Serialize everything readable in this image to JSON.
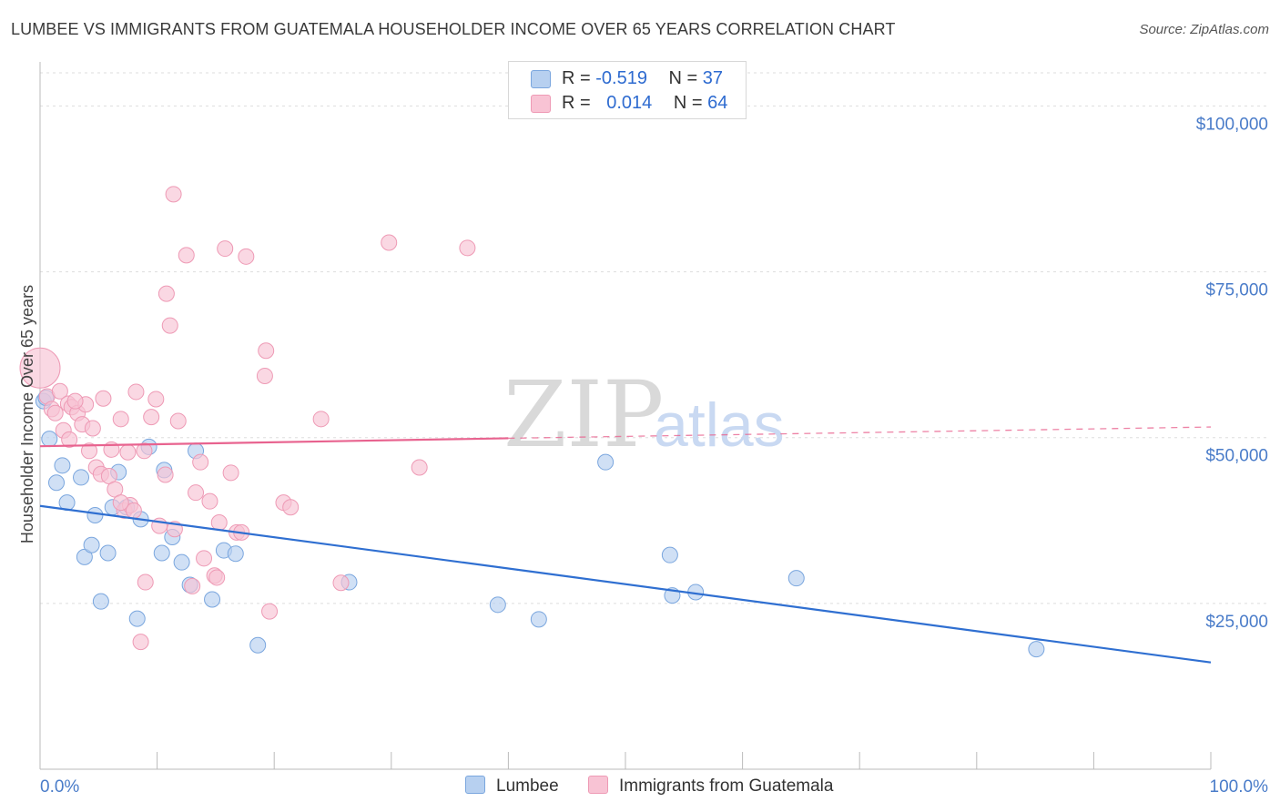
{
  "header": {
    "title": "LUMBEE VS IMMIGRANTS FROM GUATEMALA HOUSEHOLDER INCOME OVER 65 YEARS CORRELATION CHART",
    "source": "Source: ZipAtlas.com"
  },
  "legend": {
    "lumbee": {
      "r_label": "R = ",
      "r_value": "-0.519",
      "n_label": "N = ",
      "n_value": "37"
    },
    "guatemala": {
      "r_label": "R = ",
      "r_value": "0.014",
      "n_label": "N = ",
      "n_value": "64"
    }
  },
  "bottom_legend": {
    "lumbee": "Lumbee",
    "guatemala": "Immigrants from Guatemala"
  },
  "watermark": {
    "zip": "ZIP",
    "atlas": "atlas"
  },
  "colors": {
    "lumbee_fill": "#b7d0f0",
    "lumbee_stroke": "#7aa6de",
    "lumbee_line": "#2f6fd1",
    "guatemala_fill": "#f8c3d4",
    "guatemala_stroke": "#ee9ab5",
    "guatemala_line": "#e8638f",
    "axis_text": "#4a7cc9",
    "grid": "#dddddd"
  },
  "chart_data": {
    "type": "scatter",
    "title": "LUMBEE VS IMMIGRANTS FROM GUATEMALA HOUSEHOLDER INCOME OVER 65 YEARS CORRELATION CHART",
    "xlabel": "",
    "ylabel": "Householder Income Over 65 years",
    "xlim": [
      0,
      100
    ],
    "ylim": [
      0,
      105000
    ],
    "x_tick_labels": [
      "0.0%",
      "100.0%"
    ],
    "y_ticks": [
      25000,
      50000,
      75000,
      100000
    ],
    "y_tick_labels": [
      "$25,000",
      "$50,000",
      "$75,000",
      "$100,000"
    ],
    "series": [
      {
        "name": "Lumbee",
        "points": [
          [
            0.3,
            55500
          ],
          [
            0.8,
            49800
          ],
          [
            1.4,
            43200
          ],
          [
            1.9,
            45800
          ],
          [
            2.3,
            40200
          ],
          [
            3.5,
            44000
          ],
          [
            3.8,
            32000
          ],
          [
            4.4,
            33800
          ],
          [
            4.7,
            38300
          ],
          [
            5.2,
            25300
          ],
          [
            5.8,
            32600
          ],
          [
            6.2,
            39500
          ],
          [
            6.7,
            44800
          ],
          [
            7.4,
            39500
          ],
          [
            8.3,
            22700
          ],
          [
            8.6,
            37700
          ],
          [
            9.3,
            48600
          ],
          [
            10.4,
            32600
          ],
          [
            10.6,
            45100
          ],
          [
            11.3,
            35000
          ],
          [
            12.1,
            31200
          ],
          [
            12.8,
            27800
          ],
          [
            13.3,
            48000
          ],
          [
            14.7,
            25600
          ],
          [
            15.7,
            33000
          ],
          [
            16.7,
            32500
          ],
          [
            18.6,
            18700
          ],
          [
            26.4,
            28200
          ],
          [
            39.1,
            24800
          ],
          [
            42.6,
            22600
          ],
          [
            48.3,
            46300
          ],
          [
            53.8,
            32300
          ],
          [
            54.0,
            26200
          ],
          [
            56.0,
            26700
          ],
          [
            64.6,
            28800
          ],
          [
            85.1,
            18100
          ],
          [
            0.5,
            56000
          ]
        ]
      },
      {
        "name": "Immigrants from Guatemala",
        "points": [
          [
            0.0,
            60500
          ],
          [
            0.6,
            56200
          ],
          [
            1.0,
            54300
          ],
          [
            1.3,
            53700
          ],
          [
            1.7,
            57000
          ],
          [
            2.0,
            51100
          ],
          [
            2.4,
            55100
          ],
          [
            2.7,
            54600
          ],
          [
            3.2,
            53700
          ],
          [
            3.6,
            52000
          ],
          [
            3.9,
            55000
          ],
          [
            4.2,
            48000
          ],
          [
            4.5,
            51400
          ],
          [
            4.8,
            45500
          ],
          [
            5.2,
            44500
          ],
          [
            5.4,
            55900
          ],
          [
            5.9,
            44200
          ],
          [
            6.1,
            48200
          ],
          [
            6.4,
            42200
          ],
          [
            6.9,
            52800
          ],
          [
            7.2,
            39000
          ],
          [
            7.7,
            39800
          ],
          [
            7.5,
            47800
          ],
          [
            8.0,
            39000
          ],
          [
            8.2,
            56900
          ],
          [
            8.6,
            19200
          ],
          [
            9.0,
            28200
          ],
          [
            9.5,
            53100
          ],
          [
            9.9,
            55800
          ],
          [
            10.2,
            36700
          ],
          [
            10.7,
            44400
          ],
          [
            11.1,
            66900
          ],
          [
            11.5,
            36200
          ],
          [
            11.8,
            52500
          ],
          [
            12.5,
            77500
          ],
          [
            13.0,
            27600
          ],
          [
            13.3,
            41700
          ],
          [
            13.7,
            46300
          ],
          [
            14.0,
            31800
          ],
          [
            14.5,
            40400
          ],
          [
            14.9,
            29200
          ],
          [
            15.3,
            37200
          ],
          [
            15.8,
            78500
          ],
          [
            16.3,
            44700
          ],
          [
            16.8,
            35700
          ],
          [
            17.2,
            35700
          ],
          [
            17.6,
            77300
          ],
          [
            19.2,
            59300
          ],
          [
            19.3,
            63100
          ],
          [
            19.6,
            23800
          ],
          [
            20.8,
            40200
          ],
          [
            21.4,
            39500
          ],
          [
            24.0,
            52800
          ],
          [
            25.7,
            28100
          ],
          [
            29.8,
            79400
          ],
          [
            32.4,
            45500
          ],
          [
            36.5,
            78600
          ],
          [
            11.4,
            86700
          ],
          [
            10.8,
            71700
          ],
          [
            8.9,
            48000
          ],
          [
            6.9,
            40200
          ],
          [
            2.5,
            49700
          ],
          [
            3.0,
            55500
          ],
          [
            15.1,
            28900
          ]
        ]
      }
    ],
    "trend_lines": [
      {
        "series": "Lumbee",
        "x": [
          0,
          100
        ],
        "y": [
          39700,
          16100
        ],
        "style": "solid"
      },
      {
        "series": "Immigrants from Guatemala",
        "x": [
          0,
          40
        ],
        "y": [
          48700,
          49900
        ],
        "style": "solid"
      },
      {
        "series": "Immigrants from Guatemala",
        "x": [
          40,
          100
        ],
        "y": [
          49900,
          51600
        ],
        "style": "dashed"
      }
    ]
  }
}
